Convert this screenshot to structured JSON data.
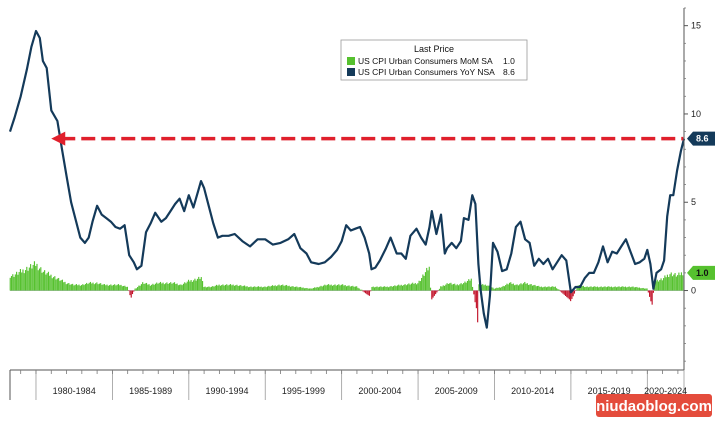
{
  "chart_data": {
    "type": "line",
    "x_range": [
      1978.3,
      2022.4
    ],
    "ylim": [
      -4.5,
      16
    ],
    "y_ticks": [
      0,
      5,
      10,
      15
    ],
    "y_tick_labels": [
      "0",
      "5",
      "10",
      "15"
    ],
    "x_tick_labels": [
      "1980-1984",
      "1985-1989",
      "1990-1994",
      "1995-1999",
      "2000-2004",
      "2005-2009",
      "2010-2014",
      "2015-2019",
      "2020-2024"
    ],
    "x_tick_bounds": [
      1980,
      1985,
      1990,
      1995,
      2000,
      2005,
      2010,
      2015,
      2020,
      2025
    ],
    "grid": false,
    "legend": {
      "title": "Last Price",
      "placement": "top-center",
      "entries": [
        {
          "label": "US CPI Urban Consumers MoM SA",
          "value": "1.0",
          "color": "#56c12f"
        },
        {
          "label": "US CPI Urban Consumers YoY NSA",
          "value": "8.6",
          "color": "#143a5a"
        }
      ]
    },
    "last_labels": {
      "yoy": "8.6",
      "mom": "1.0"
    },
    "reference_line": {
      "y": 8.6,
      "x_from": 1981.0,
      "x_to": 2022.35,
      "color": "#e0202c",
      "style": "dashed",
      "arrow": "left"
    },
    "series": [
      {
        "name": "US CPI Urban Consumers YoY NSA",
        "color": "#143a5a",
        "x": [
          1978.3,
          1978.6,
          1979.0,
          1979.4,
          1979.7,
          1980.0,
          1980.25,
          1980.45,
          1980.7,
          1981.0,
          1981.4,
          1981.7,
          1982.0,
          1982.3,
          1982.6,
          1982.9,
          1983.2,
          1983.45,
          1983.7,
          1984.0,
          1984.3,
          1984.6,
          1984.9,
          1985.2,
          1985.5,
          1985.8,
          1986.1,
          1986.4,
          1986.6,
          1986.9,
          1987.2,
          1987.5,
          1987.8,
          1988.2,
          1988.5,
          1988.8,
          1989.1,
          1989.4,
          1989.7,
          1990.0,
          1990.3,
          1990.6,
          1990.8,
          1991.0,
          1991.3,
          1991.6,
          1991.9,
          1992.2,
          1992.6,
          1993.0,
          1993.5,
          1994.0,
          1994.5,
          1995.0,
          1995.5,
          1996.0,
          1996.5,
          1996.9,
          1997.3,
          1997.7,
          1998.0,
          1998.5,
          1998.9,
          1999.3,
          1999.7,
          2000.0,
          2000.3,
          2000.6,
          2000.9,
          2001.2,
          2001.5,
          2001.8,
          2001.95,
          2002.2,
          2002.5,
          2002.9,
          2003.2,
          2003.6,
          2003.9,
          2004.2,
          2004.5,
          2004.9,
          2005.2,
          2005.5,
          2005.75,
          2005.9,
          2006.2,
          2006.5,
          2006.75,
          2006.9,
          2007.2,
          2007.5,
          2007.8,
          2008.0,
          2008.3,
          2008.55,
          2008.75,
          2008.95,
          2009.1,
          2009.3,
          2009.5,
          2009.7,
          2009.9,
          2010.2,
          2010.5,
          2010.8,
          2011.1,
          2011.4,
          2011.7,
          2012.0,
          2012.3,
          2012.6,
          2012.9,
          2013.2,
          2013.5,
          2013.8,
          2014.1,
          2014.4,
          2014.7,
          2015.0,
          2015.3,
          2015.6,
          2015.9,
          2016.2,
          2016.5,
          2016.8,
          2017.1,
          2017.4,
          2017.7,
          2018.0,
          2018.3,
          2018.6,
          2018.9,
          2019.2,
          2019.5,
          2019.8,
          2020.0,
          2020.2,
          2020.4,
          2020.6,
          2020.9,
          2021.1,
          2021.3,
          2021.5,
          2021.7,
          2021.95,
          2022.2,
          2022.4
        ],
        "values": [
          9.0,
          9.8,
          11.0,
          12.5,
          13.8,
          14.7,
          14.3,
          13.0,
          12.6,
          10.2,
          9.6,
          8.0,
          6.5,
          5.0,
          4.0,
          3.0,
          2.7,
          3.0,
          3.9,
          4.8,
          4.3,
          4.1,
          3.9,
          3.6,
          3.5,
          3.7,
          2.0,
          1.6,
          1.2,
          1.4,
          3.3,
          3.8,
          4.4,
          3.9,
          4.1,
          4.5,
          4.9,
          5.2,
          4.5,
          5.4,
          4.7,
          5.6,
          6.2,
          5.8,
          4.8,
          3.8,
          3.0,
          3.1,
          3.1,
          3.2,
          2.8,
          2.5,
          2.9,
          2.9,
          2.6,
          2.7,
          2.9,
          3.2,
          2.4,
          2.1,
          1.6,
          1.5,
          1.6,
          1.9,
          2.3,
          2.8,
          3.7,
          3.4,
          3.5,
          3.6,
          3.0,
          2.1,
          1.2,
          1.3,
          1.7,
          2.4,
          3.0,
          2.1,
          2.1,
          1.8,
          3.1,
          3.5,
          3.0,
          2.6,
          3.6,
          4.5,
          3.2,
          4.3,
          2.1,
          2.4,
          2.7,
          2.4,
          2.8,
          4.1,
          4.0,
          5.4,
          4.9,
          1.5,
          0.0,
          -1.3,
          -2.1,
          -0.3,
          2.7,
          2.2,
          1.1,
          1.2,
          2.1,
          3.6,
          3.9,
          2.9,
          2.7,
          1.4,
          1.8,
          1.5,
          1.8,
          1.2,
          1.6,
          2.0,
          1.7,
          -0.1,
          0.2,
          0.2,
          0.7,
          1.0,
          1.0,
          1.6,
          2.5,
          1.6,
          2.2,
          2.1,
          2.5,
          2.9,
          2.2,
          1.5,
          1.6,
          1.8,
          2.3,
          1.5,
          0.1,
          1.0,
          1.2,
          1.7,
          4.2,
          5.4,
          5.4,
          6.8,
          7.9,
          8.6
        ]
      },
      {
        "name": "US CPI Urban Consumers MoM SA",
        "color": "#56c12f",
        "negative_color": "#c2132a",
        "x": [
          1978.5,
          1979.0,
          1979.5,
          1980.0,
          1980.5,
          1981.0,
          1981.5,
          1982.0,
          1982.5,
          1983.0,
          1983.5,
          1984.0,
          1984.5,
          1985.0,
          1985.5,
          1986.0,
          1986.2,
          1986.5,
          1987.0,
          1987.5,
          1988.0,
          1988.5,
          1989.0,
          1989.5,
          1990.0,
          1990.5,
          1990.8,
          1991.0,
          1991.5,
          1992.0,
          1993.0,
          1994.0,
          1995.0,
          1996.0,
          1997.0,
          1998.0,
          1999.0,
          2000.0,
          2001.0,
          2001.8,
          2002.0,
          2003.0,
          2004.0,
          2005.0,
          2005.7,
          2005.9,
          2006.5,
          2007.0,
          2007.5,
          2008.0,
          2008.5,
          2008.8,
          2008.9,
          2009.0,
          2009.5,
          2010.0,
          2010.5,
          2011.0,
          2011.5,
          2012.0,
          2012.5,
          2013.0,
          2014.0,
          2014.9,
          2015.0,
          2015.5,
          2016.0,
          2017.0,
          2018.0,
          2019.0,
          2020.0,
          2020.3,
          2020.5,
          2021.0,
          2021.3,
          2021.5,
          2022.0,
          2022.4
        ],
        "values": [
          0.8,
          1.0,
          1.2,
          1.4,
          1.0,
          0.8,
          0.6,
          0.4,
          0.3,
          0.3,
          0.4,
          0.4,
          0.3,
          0.3,
          0.3,
          0.2,
          -0.4,
          0.1,
          0.4,
          0.3,
          0.4,
          0.4,
          0.4,
          0.3,
          0.5,
          0.6,
          0.7,
          0.2,
          0.2,
          0.3,
          0.3,
          0.2,
          0.2,
          0.3,
          0.2,
          0.1,
          0.3,
          0.3,
          0.2,
          -0.3,
          0.2,
          0.2,
          0.3,
          0.4,
          1.2,
          -0.5,
          0.2,
          0.4,
          0.3,
          0.4,
          0.6,
          -1.0,
          -1.8,
          0.3,
          0.3,
          0.1,
          0.2,
          0.4,
          0.3,
          0.4,
          0.3,
          0.2,
          0.2,
          -0.5,
          -0.6,
          0.3,
          0.2,
          0.2,
          0.2,
          0.2,
          0.1,
          -0.8,
          0.5,
          0.6,
          0.8,
          0.9,
          0.8,
          1.0
        ]
      }
    ]
  },
  "badges": {
    "yoy_color": "#143a5a",
    "mom_color": "#56c12f"
  },
  "watermark": {
    "text": "niudaoblog.com"
  }
}
